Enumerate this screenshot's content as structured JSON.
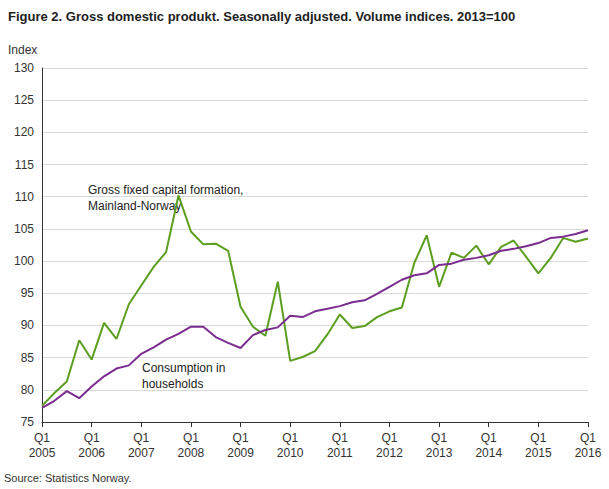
{
  "chart_data": {
    "type": "line",
    "title": "Figure 2. Gross domestic produkt. Seasonally adjusted. Volume indices. 2013=100",
    "y_label": "Index",
    "source": "Source: Statistics Norway.",
    "categories": [
      "Q1\n2005",
      null,
      null,
      null,
      "Q1\n2006",
      null,
      null,
      null,
      "Q1\n2007",
      null,
      null,
      null,
      "Q1\n2008",
      null,
      null,
      null,
      "Q1\n2009",
      null,
      null,
      null,
      "Q1\n2010",
      null,
      null,
      null,
      "Q1\n2011",
      null,
      null,
      null,
      "Q1\n2012",
      null,
      null,
      null,
      "Q1\n2013",
      null,
      null,
      null,
      "Q1\n2014",
      null,
      null,
      null,
      "Q1\n2015",
      null,
      null,
      null,
      "Q1\n2016"
    ],
    "series": [
      {
        "name": "Gross fixed capital formation,\nMainland-Norway",
        "color": "#5c9e1f",
        "values": [
          77.5,
          79.5,
          81.3,
          87.7,
          84.7,
          90.4,
          87.9,
          93.3,
          96.2,
          99.1,
          101.4,
          110.2,
          104.6,
          102.6,
          102.7,
          101.6,
          92.9,
          89.8,
          88.4,
          96.8,
          84.5,
          85.1,
          86.0,
          88.6,
          91.7,
          89.6,
          89.9,
          91.3,
          92.2,
          92.8,
          99.7,
          104.0,
          96.0,
          101.3,
          100.5,
          102.4,
          99.5,
          102.2,
          103.2,
          100.7,
          98.1,
          100.5,
          103.6,
          103.0,
          103.5
        ]
      },
      {
        "name": "Consumption in\nhouseholds",
        "color": "#7b2c8f",
        "values": [
          77.2,
          78.3,
          79.8,
          78.7,
          80.5,
          82.1,
          83.3,
          83.8,
          85.6,
          86.6,
          87.8,
          88.7,
          89.8,
          89.8,
          88.2,
          87.3,
          86.5,
          88.5,
          89.3,
          89.7,
          91.5,
          91.3,
          92.2,
          92.6,
          93.0,
          93.6,
          93.9,
          94.9,
          96.0,
          97.1,
          97.8,
          98.1,
          99.4,
          99.6,
          100.2,
          100.5,
          100.9,
          101.6,
          101.9,
          102.3,
          102.8,
          103.6,
          103.8,
          104.2,
          104.8
        ]
      }
    ],
    "ylim": [
      75,
      130
    ],
    "yticks": [
      75,
      80,
      85,
      90,
      95,
      100,
      105,
      110,
      115,
      120,
      125,
      130
    ],
    "grid": true
  }
}
